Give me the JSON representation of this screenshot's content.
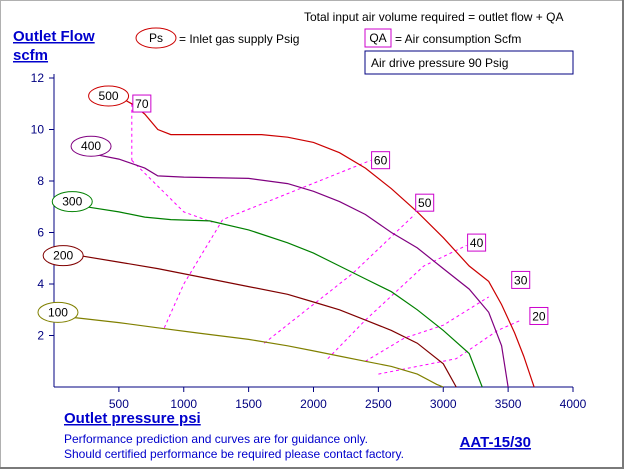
{
  "chart_data": {
    "type": "line",
    "title": "Total input air volume required = outlet flow + QA",
    "ylabel_line1": "Outlet Flow",
    "ylabel_line2": "scfm",
    "xlabel": "Outlet pressure   psi",
    "xlim": [
      0,
      4000
    ],
    "ylim": [
      0,
      12
    ],
    "xticks": [
      500,
      1000,
      1500,
      2000,
      2500,
      3000,
      3500,
      4000
    ],
    "yticks": [
      2,
      4,
      6,
      8,
      10,
      12
    ],
    "legend": {
      "ps_symbol": "Ps",
      "ps_text": "= Inlet gas supply  Psig",
      "qa_symbol": "QA",
      "qa_text": "= Air consumption  Scfm",
      "drive_pressure": "Air drive pressure  90 Psig"
    },
    "series": [
      {
        "name": "500",
        "color": "#cc0000",
        "points": [
          [
            490,
            11.3
          ],
          [
            600,
            11.0
          ],
          [
            700,
            10.6
          ],
          [
            800,
            10.0
          ],
          [
            900,
            9.8
          ],
          [
            1600,
            9.8
          ],
          [
            1800,
            9.7
          ],
          [
            2000,
            9.5
          ],
          [
            2200,
            9.1
          ],
          [
            2400,
            8.5
          ],
          [
            2600,
            7.7
          ],
          [
            2800,
            6.8
          ],
          [
            3000,
            5.8
          ],
          [
            3200,
            4.7
          ],
          [
            3350,
            4.1
          ],
          [
            3450,
            3.2
          ],
          [
            3550,
            2.1
          ],
          [
            3620,
            1.2
          ],
          [
            3700,
            0
          ]
        ]
      },
      {
        "name": "400",
        "color": "#800080",
        "points": [
          [
            350,
            9.0
          ],
          [
            500,
            8.85
          ],
          [
            700,
            8.5
          ],
          [
            800,
            8.2
          ],
          [
            1000,
            8.15
          ],
          [
            1500,
            8.1
          ],
          [
            1800,
            7.9
          ],
          [
            2000,
            7.6
          ],
          [
            2200,
            7.2
          ],
          [
            2400,
            6.7
          ],
          [
            2600,
            6.0
          ],
          [
            2800,
            5.4
          ],
          [
            3000,
            4.6
          ],
          [
            3200,
            3.8
          ],
          [
            3350,
            2.9
          ],
          [
            3450,
            1.6
          ],
          [
            3500,
            0
          ]
        ]
      },
      {
        "name": "300",
        "color": "#008000",
        "points": [
          [
            250,
            7.0
          ],
          [
            500,
            6.8
          ],
          [
            700,
            6.6
          ],
          [
            900,
            6.5
          ],
          [
            1200,
            6.45
          ],
          [
            1500,
            6.1
          ],
          [
            1800,
            5.6
          ],
          [
            2000,
            5.2
          ],
          [
            2200,
            4.7
          ],
          [
            2400,
            4.2
          ],
          [
            2600,
            3.7
          ],
          [
            2800,
            3.0
          ],
          [
            3000,
            2.2
          ],
          [
            3200,
            1.3
          ],
          [
            3300,
            0
          ]
        ]
      },
      {
        "name": "200",
        "color": "#800000",
        "points": [
          [
            200,
            5.1
          ],
          [
            500,
            4.85
          ],
          [
            800,
            4.6
          ],
          [
            1200,
            4.2
          ],
          [
            1500,
            3.9
          ],
          [
            1800,
            3.6
          ],
          [
            2000,
            3.3
          ],
          [
            2200,
            3.0
          ],
          [
            2400,
            2.6
          ],
          [
            2600,
            2.2
          ],
          [
            2800,
            1.7
          ],
          [
            3000,
            0.9
          ],
          [
            3100,
            0
          ]
        ]
      },
      {
        "name": "100",
        "color": "#808000",
        "points": [
          [
            150,
            2.7
          ],
          [
            500,
            2.5
          ],
          [
            800,
            2.3
          ],
          [
            1100,
            2.1
          ],
          [
            1500,
            1.85
          ],
          [
            1800,
            1.6
          ],
          [
            2000,
            1.4
          ],
          [
            2200,
            1.2
          ],
          [
            2400,
            1.0
          ],
          [
            2600,
            0.8
          ],
          [
            2800,
            0.5
          ],
          [
            2950,
            0.1
          ],
          [
            3000,
            0
          ]
        ]
      }
    ],
    "qa_lines": [
      {
        "label": "70",
        "points": [
          [
            600,
            11.0
          ],
          [
            600,
            8.8
          ]
        ]
      },
      {
        "label": "60",
        "points": [
          [
            850,
            2.3
          ],
          [
            1000,
            4.0
          ],
          [
            1300,
            6.5
          ],
          [
            2440,
            8.8
          ]
        ]
      },
      {
        "label": "50",
        "points": [
          [
            1620,
            1.7
          ],
          [
            2300,
            4.4
          ],
          [
            2780,
            6.7
          ]
        ]
      },
      {
        "label": "40",
        "points": [
          [
            2110,
            1.1
          ],
          [
            2400,
            2.6
          ],
          [
            2850,
            4.7
          ],
          [
            3180,
            5.5
          ]
        ]
      },
      {
        "label": "30",
        "points": [
          [
            2400,
            1.0
          ],
          [
            2700,
            1.9
          ],
          [
            3000,
            2.4
          ],
          [
            3350,
            3.5
          ]
        ]
      },
      {
        "label": "20",
        "points": [
          [
            2500,
            0.5
          ],
          [
            2800,
            0.8
          ],
          [
            3100,
            1.1
          ],
          [
            3420,
            2.2
          ],
          [
            3600,
            2.6
          ]
        ]
      },
      {
        "label": "",
        "points": [
          [
            600,
            8.8
          ],
          [
            1000,
            6.8
          ],
          [
            1220,
            6.4
          ]
        ]
      }
    ],
    "ps_labels": [
      {
        "label": "500",
        "at": [
          490,
          11.3
        ]
      },
      {
        "label": "400",
        "at": [
          355,
          9.35
        ]
      },
      {
        "label": "300",
        "at": [
          210,
          7.2
        ]
      },
      {
        "label": "200",
        "at": [
          140,
          5.1
        ]
      },
      {
        "label": "100",
        "at": [
          100,
          2.9
        ]
      }
    ],
    "qa_boxes": [
      {
        "label": "70",
        "at": [
          600,
          10.95
        ]
      },
      {
        "label": "60",
        "at": [
          2440,
          8.75
        ]
      },
      {
        "label": "50",
        "at": [
          2780,
          7.1
        ]
      },
      {
        "label": "40",
        "at": [
          3180,
          5.55
        ]
      },
      {
        "label": "30",
        "at": [
          3520,
          4.1
        ]
      },
      {
        "label": "20",
        "at": [
          3660,
          2.7
        ]
      }
    ],
    "grid": false
  },
  "footer": {
    "note_line1": "Performance prediction and curves are for guidance only.",
    "note_line2": "Should certified performance be required please contact factory.",
    "model": "AAT-15/30"
  }
}
